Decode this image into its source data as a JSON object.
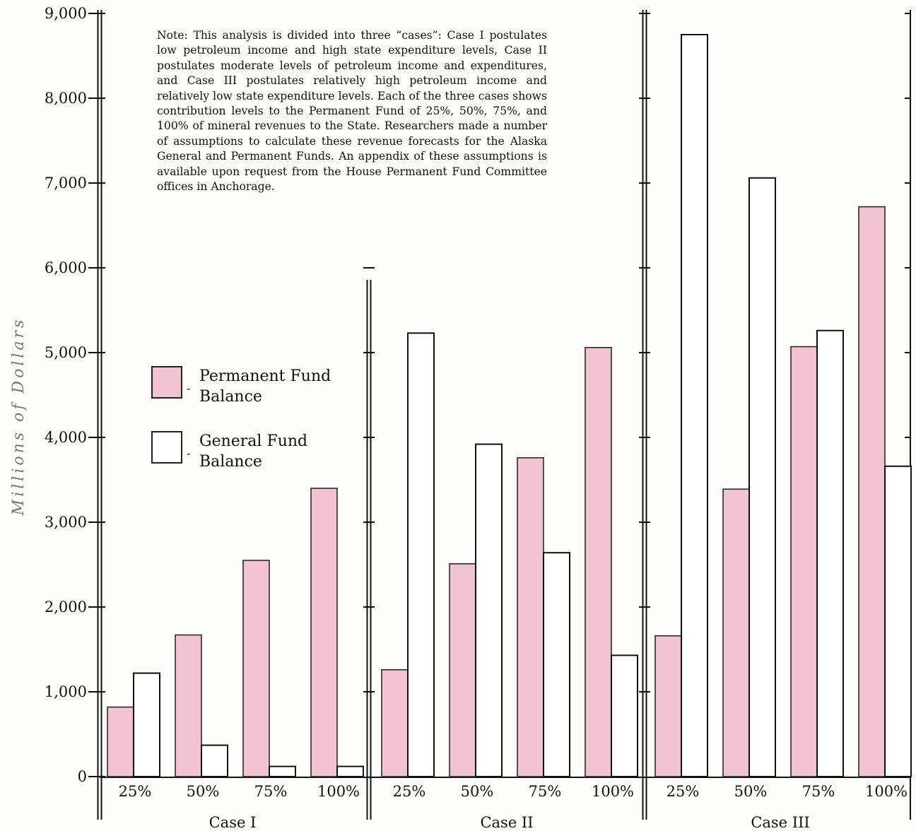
{
  "chart_data": {
    "type": "bar",
    "ylabel": "Millions of Dollars",
    "ylim": [
      0,
      9000
    ],
    "yticks": [
      0,
      1000,
      2000,
      3000,
      4000,
      5000,
      6000,
      7000,
      8000,
      9000
    ],
    "ytick_labels": [
      "0",
      "1,000",
      "2,000",
      "3,000",
      "4,000",
      "5,000",
      "6,000",
      "7,000",
      "8,000",
      "9,000"
    ],
    "groups": [
      {
        "name": "Case I",
        "categories": [
          "25%",
          "50%",
          "75%",
          "100%"
        ],
        "permanent": [
          820,
          1670,
          2550,
          3400
        ],
        "general": [
          1220,
          370,
          120,
          120
        ]
      },
      {
        "name": "Case II",
        "categories": [
          "25%",
          "50%",
          "75%",
          "100%"
        ],
        "permanent": [
          1260,
          2510,
          3760,
          5060
        ],
        "general": [
          5230,
          3920,
          2640,
          1430
        ]
      },
      {
        "name": "Case III",
        "categories": [
          "25%",
          "50%",
          "75%",
          "100%"
        ],
        "permanent": [
          1660,
          3390,
          5070,
          6720
        ],
        "general": [
          8750,
          7060,
          5260,
          3660
        ]
      }
    ],
    "series": [
      {
        "name": "Permanent Fund Balance",
        "color": "#f2c4d3"
      },
      {
        "name": "General Fund Balance",
        "color": "#ffffff"
      }
    ],
    "legend": [
      {
        "line1": "Permanent Fund",
        "line2": "Balance"
      },
      {
        "line1": "General Fund",
        "line2": "Balance"
      }
    ],
    "legend_position": "left",
    "grid": false,
    "note": "Note: This analysis is divided into three “cases”: Case I postulates low petroleum income and high state expenditure levels, Case II postulates moderate levels of petroleum income and expenditures, and Case III postulates relatively high petroleum income and relatively low state expenditure levels. Each of the three cases shows contribution levels to the Permanent Fund of 25%, 50%, 75%, and 100% of mineral revenues to the State. Researchers made a number of assumptions to calculate these revenue forecasts for the Alaska General and Permanent Funds. An appendix of these assumptions is available upon request from the House Permanent Fund Committee offices in Anchorage."
  }
}
